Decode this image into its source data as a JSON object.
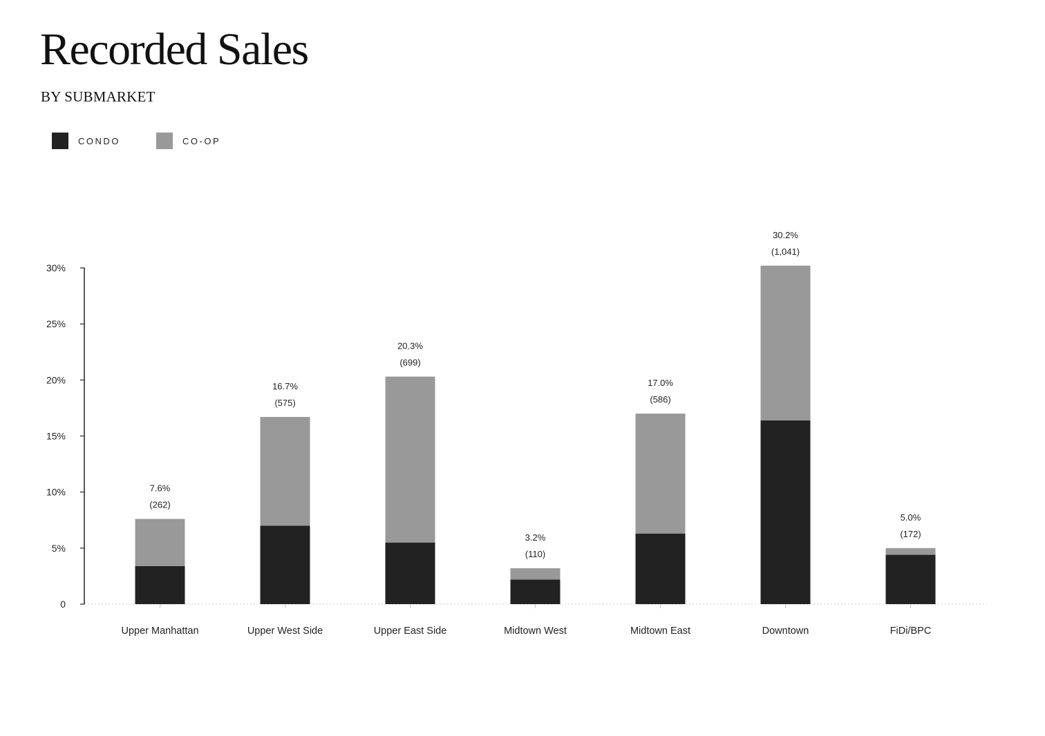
{
  "chart_data": {
    "type": "bar",
    "stacked": true,
    "title": "Recorded Sales",
    "subtitle": "BY SUBMARKET",
    "legend_position": "top-left",
    "categories": [
      "Upper Manhattan",
      "Upper West Side",
      "Upper East Side",
      "Midtown West",
      "Midtown East",
      "Downtown",
      "FiDi/BPC"
    ],
    "series": [
      {
        "name": "CONDO",
        "color": "#222222",
        "values": [
          3.4,
          7.0,
          5.5,
          2.2,
          6.3,
          16.4,
          4.4
        ]
      },
      {
        "name": "CO-OP",
        "color": "#999999",
        "values": [
          4.2,
          9.7,
          14.8,
          1.0,
          10.7,
          13.8,
          0.6
        ]
      }
    ],
    "total_labels": [
      "7.6%",
      "16.7%",
      "20.3%",
      "3.2%",
      "17.0%",
      "30.2%",
      "5.0%"
    ],
    "count_labels": [
      "(262)",
      "(575)",
      "(699)",
      "(110)",
      "(586)",
      "(1,041)",
      "(172)"
    ],
    "ylim": [
      0,
      30
    ],
    "yticks": [
      0,
      5,
      10,
      15,
      20,
      25,
      30
    ],
    "ytick_labels": [
      "0",
      "5%",
      "10%",
      "15%",
      "20%",
      "25%",
      "30%"
    ],
    "xlabel": "",
    "ylabel": "",
    "grid": false
  }
}
